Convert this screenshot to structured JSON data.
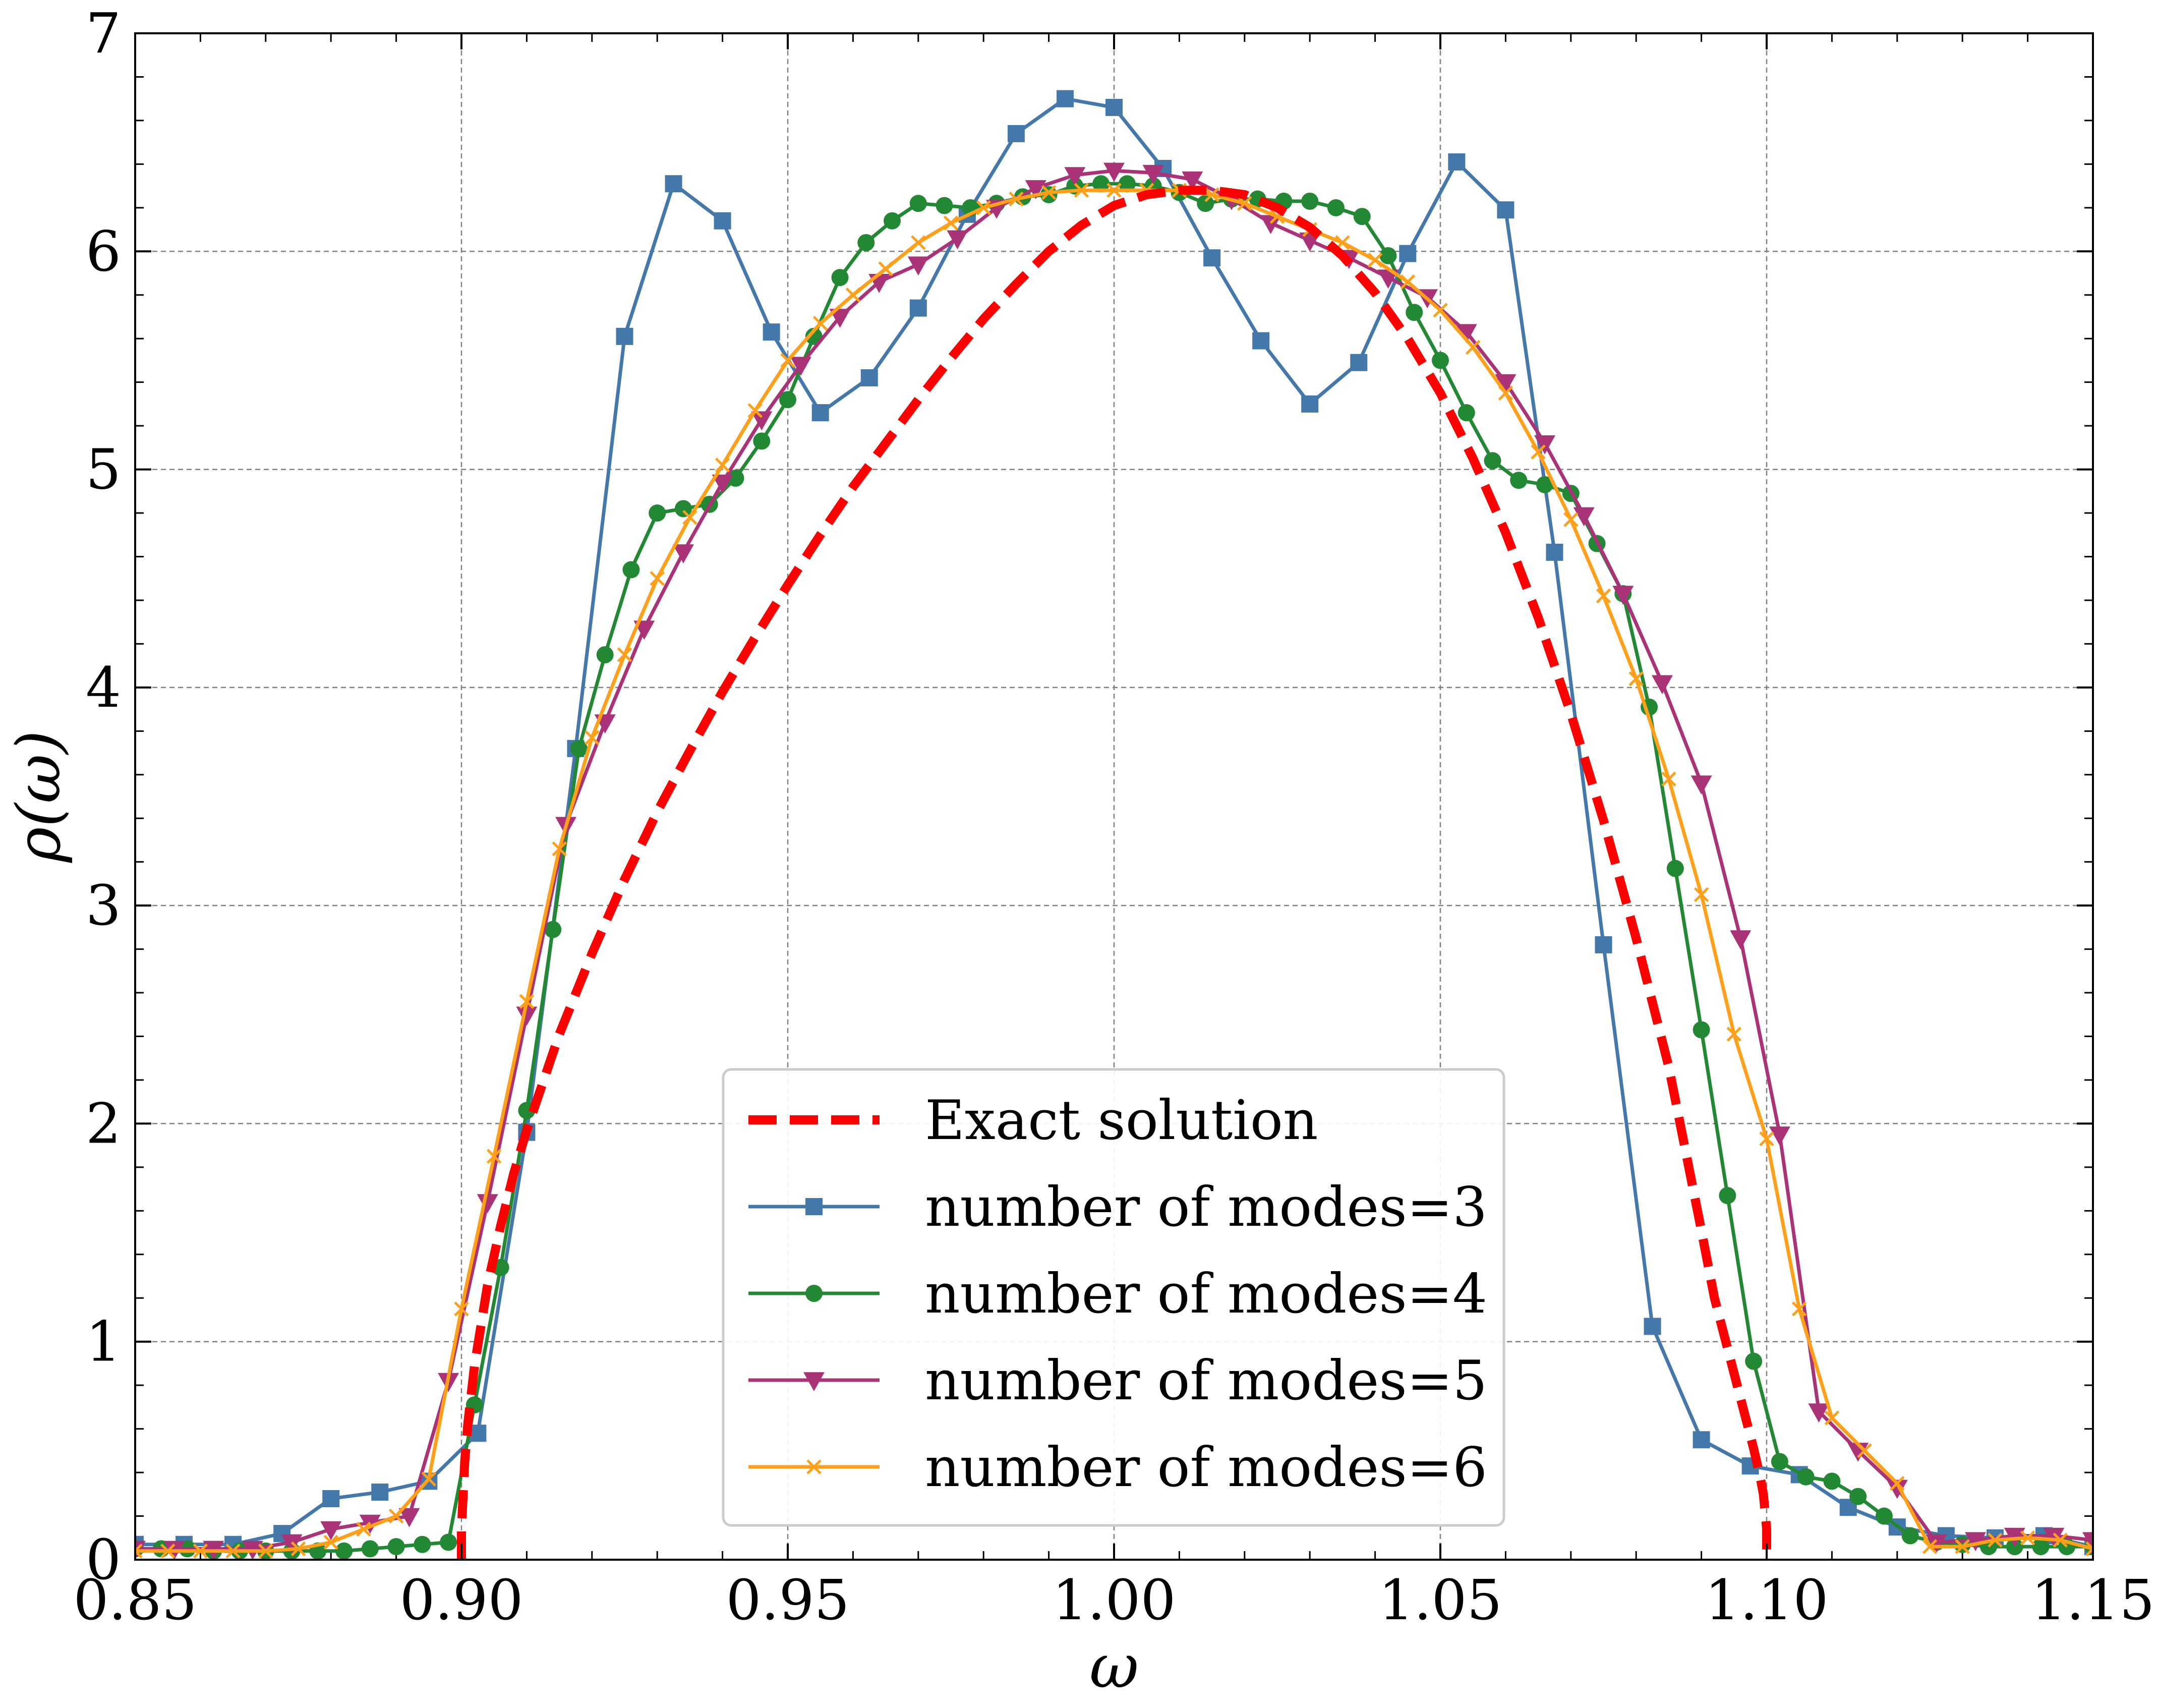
{
  "chart_data": {
    "type": "line",
    "xlabel": "ω",
    "ylabel": "ρ(ω)",
    "xlim": [
      0.85,
      1.15
    ],
    "ylim": [
      0,
      7
    ],
    "xticks": [
      0.85,
      0.9,
      0.95,
      1.0,
      1.05,
      1.1,
      1.15
    ],
    "xtick_labels": [
      "0.85",
      "0.90",
      "0.95",
      "1.00",
      "1.05",
      "1.10",
      "1.15"
    ],
    "yticks": [
      0,
      1,
      2,
      3,
      4,
      5,
      6,
      7
    ],
    "ytick_labels": [
      "0",
      "1",
      "2",
      "3",
      "4",
      "5",
      "6",
      "7"
    ],
    "grid": true,
    "legend_position": "bottom-center",
    "series": [
      {
        "name": "Exact solution",
        "color": "#ff0000",
        "style": "dashed",
        "marker": "none",
        "x": [
          0.9,
          0.9,
          0.9005,
          0.901,
          0.902,
          0.904,
          0.906,
          0.908,
          0.91,
          0.915,
          0.92,
          0.925,
          0.93,
          0.935,
          0.94,
          0.945,
          0.95,
          0.955,
          0.96,
          0.965,
          0.97,
          0.975,
          0.98,
          0.985,
          0.99,
          0.995,
          1.0,
          1.005,
          1.01,
          1.015,
          1.02,
          1.025,
          1.03,
          1.035,
          1.04,
          1.045,
          1.05,
          1.055,
          1.06,
          1.065,
          1.07,
          1.075,
          1.08,
          1.085,
          1.09,
          1.092,
          1.094,
          1.096,
          1.098,
          1.099,
          1.0995,
          1.1,
          1.1
        ],
        "y": [
          0.0,
          0.14,
          0.45,
          0.63,
          0.89,
          1.26,
          1.53,
          1.77,
          1.97,
          2.41,
          2.78,
          3.12,
          3.43,
          3.71,
          3.98,
          4.23,
          4.47,
          4.7,
          4.92,
          5.12,
          5.32,
          5.51,
          5.69,
          5.85,
          6.0,
          6.12,
          6.21,
          6.26,
          6.28,
          6.28,
          6.26,
          6.2,
          6.11,
          5.98,
          5.81,
          5.6,
          5.35,
          5.05,
          4.71,
          4.32,
          3.88,
          3.39,
          2.85,
          2.26,
          1.51,
          1.2,
          0.97,
          0.74,
          0.51,
          0.38,
          0.3,
          0.14,
          0.0
        ]
      },
      {
        "name": "number of modes=3",
        "color": "#4477aa",
        "style": "solid",
        "marker": "square",
        "x": [
          0.85,
          0.8575,
          0.865,
          0.8725,
          0.88,
          0.8875,
          0.895,
          0.9025,
          0.91,
          0.9175,
          0.925,
          0.9325,
          0.94,
          0.9475,
          0.955,
          0.9625,
          0.97,
          0.9775,
          0.985,
          0.9925,
          1.0,
          1.0075,
          1.015,
          1.0225,
          1.03,
          1.0375,
          1.045,
          1.0525,
          1.06,
          1.0675,
          1.075,
          1.0825,
          1.09,
          1.0975,
          1.105,
          1.1125,
          1.12,
          1.1275,
          1.135,
          1.1425,
          1.15
        ],
        "y": [
          0.07,
          0.07,
          0.07,
          0.12,
          0.28,
          0.31,
          0.36,
          0.58,
          1.96,
          3.72,
          5.61,
          6.31,
          6.14,
          5.63,
          5.26,
          5.42,
          5.74,
          6.17,
          6.54,
          6.7,
          6.66,
          6.38,
          5.97,
          5.59,
          5.3,
          5.49,
          5.99,
          6.41,
          6.19,
          4.62,
          2.82,
          1.07,
          0.55,
          0.43,
          0.39,
          0.24,
          0.15,
          0.11,
          0.1,
          0.11,
          0.06
        ]
      },
      {
        "name": "number of modes=4",
        "color": "#228833",
        "style": "solid",
        "marker": "circle",
        "x": [
          0.85,
          0.854,
          0.858,
          0.862,
          0.866,
          0.87,
          0.874,
          0.878,
          0.882,
          0.886,
          0.89,
          0.894,
          0.898,
          0.902,
          0.906,
          0.91,
          0.914,
          0.918,
          0.922,
          0.926,
          0.93,
          0.934,
          0.938,
          0.942,
          0.946,
          0.95,
          0.954,
          0.958,
          0.962,
          0.966,
          0.97,
          0.974,
          0.978,
          0.982,
          0.986,
          0.99,
          0.994,
          0.998,
          1.002,
          1.006,
          1.01,
          1.014,
          1.018,
          1.022,
          1.026,
          1.03,
          1.034,
          1.038,
          1.042,
          1.046,
          1.05,
          1.054,
          1.058,
          1.062,
          1.066,
          1.07,
          1.074,
          1.078,
          1.082,
          1.086,
          1.09,
          1.094,
          1.098,
          1.102,
          1.106,
          1.11,
          1.114,
          1.118,
          1.122,
          1.126,
          1.13,
          1.134,
          1.138,
          1.142,
          1.146,
          1.15
        ],
        "y": [
          0.05,
          0.05,
          0.05,
          0.04,
          0.04,
          0.04,
          0.04,
          0.04,
          0.04,
          0.05,
          0.06,
          0.07,
          0.08,
          0.71,
          1.34,
          2.06,
          2.89,
          3.72,
          4.15,
          4.54,
          4.8,
          4.82,
          4.84,
          4.96,
          5.13,
          5.32,
          5.61,
          5.88,
          6.04,
          6.14,
          6.22,
          6.21,
          6.2,
          6.22,
          6.25,
          6.26,
          6.3,
          6.31,
          6.31,
          6.3,
          6.27,
          6.22,
          6.24,
          6.24,
          6.23,
          6.23,
          6.2,
          6.16,
          5.98,
          5.72,
          5.5,
          5.26,
          5.04,
          4.95,
          4.93,
          4.89,
          4.66,
          4.43,
          3.91,
          3.17,
          2.43,
          1.67,
          0.91,
          0.45,
          0.38,
          0.36,
          0.29,
          0.2,
          0.11,
          0.08,
          0.07,
          0.06,
          0.06,
          0.06,
          0.06,
          0.06
        ]
      },
      {
        "name": "number of modes=5",
        "color": "#aa3377",
        "style": "solid",
        "marker": "triangle-down",
        "x": [
          0.85,
          0.856,
          0.862,
          0.868,
          0.874,
          0.88,
          0.886,
          0.892,
          0.898,
          0.904,
          0.91,
          0.916,
          0.922,
          0.928,
          0.934,
          0.94,
          0.946,
          0.952,
          0.958,
          0.964,
          0.97,
          0.976,
          0.982,
          0.988,
          0.994,
          1.0,
          1.006,
          1.012,
          1.018,
          1.024,
          1.03,
          1.036,
          1.042,
          1.048,
          1.054,
          1.06,
          1.066,
          1.072,
          1.078,
          1.084,
          1.09,
          1.096,
          1.102,
          1.108,
          1.114,
          1.12,
          1.126,
          1.132,
          1.138,
          1.144,
          1.15
        ],
        "y": [
          0.05,
          0.05,
          0.05,
          0.05,
          0.08,
          0.14,
          0.17,
          0.2,
          0.82,
          1.64,
          2.5,
          3.37,
          3.84,
          4.27,
          4.62,
          4.94,
          5.23,
          5.48,
          5.7,
          5.86,
          5.94,
          6.06,
          6.2,
          6.29,
          6.35,
          6.37,
          6.36,
          6.33,
          6.24,
          6.13,
          6.05,
          5.97,
          5.88,
          5.79,
          5.63,
          5.4,
          5.12,
          4.79,
          4.43,
          4.02,
          3.56,
          2.85,
          1.95,
          0.68,
          0.5,
          0.33,
          0.08,
          0.09,
          0.11,
          0.11,
          0.09
        ]
      },
      {
        "name": "number of modes=6",
        "color": "#ff9f1a",
        "style": "solid",
        "marker": "x",
        "x": [
          0.85,
          0.855,
          0.86,
          0.865,
          0.87,
          0.875,
          0.88,
          0.885,
          0.89,
          0.895,
          0.9,
          0.905,
          0.91,
          0.915,
          0.92,
          0.925,
          0.93,
          0.935,
          0.94,
          0.945,
          0.95,
          0.955,
          0.96,
          0.965,
          0.97,
          0.975,
          0.98,
          0.985,
          0.99,
          0.995,
          1.0,
          1.005,
          1.01,
          1.015,
          1.02,
          1.025,
          1.03,
          1.035,
          1.04,
          1.045,
          1.05,
          1.055,
          1.06,
          1.065,
          1.07,
          1.075,
          1.08,
          1.085,
          1.09,
          1.095,
          1.1,
          1.105,
          1.11,
          1.115,
          1.12,
          1.125,
          1.13,
          1.135,
          1.14,
          1.145,
          1.15
        ],
        "y": [
          0.04,
          0.04,
          0.04,
          0.04,
          0.04,
          0.05,
          0.08,
          0.14,
          0.2,
          0.37,
          1.15,
          1.85,
          2.56,
          3.26,
          3.77,
          4.15,
          4.5,
          4.78,
          5.02,
          5.27,
          5.5,
          5.67,
          5.8,
          5.92,
          6.04,
          6.13,
          6.2,
          6.24,
          6.27,
          6.28,
          6.28,
          6.28,
          6.28,
          6.26,
          6.22,
          6.16,
          6.1,
          6.04,
          5.96,
          5.86,
          5.73,
          5.56,
          5.35,
          5.08,
          4.77,
          4.42,
          4.04,
          3.58,
          3.05,
          2.41,
          1.93,
          1.15,
          0.65,
          0.5,
          0.35,
          0.06,
          0.06,
          0.09,
          0.1,
          0.09,
          0.05
        ]
      }
    ]
  }
}
